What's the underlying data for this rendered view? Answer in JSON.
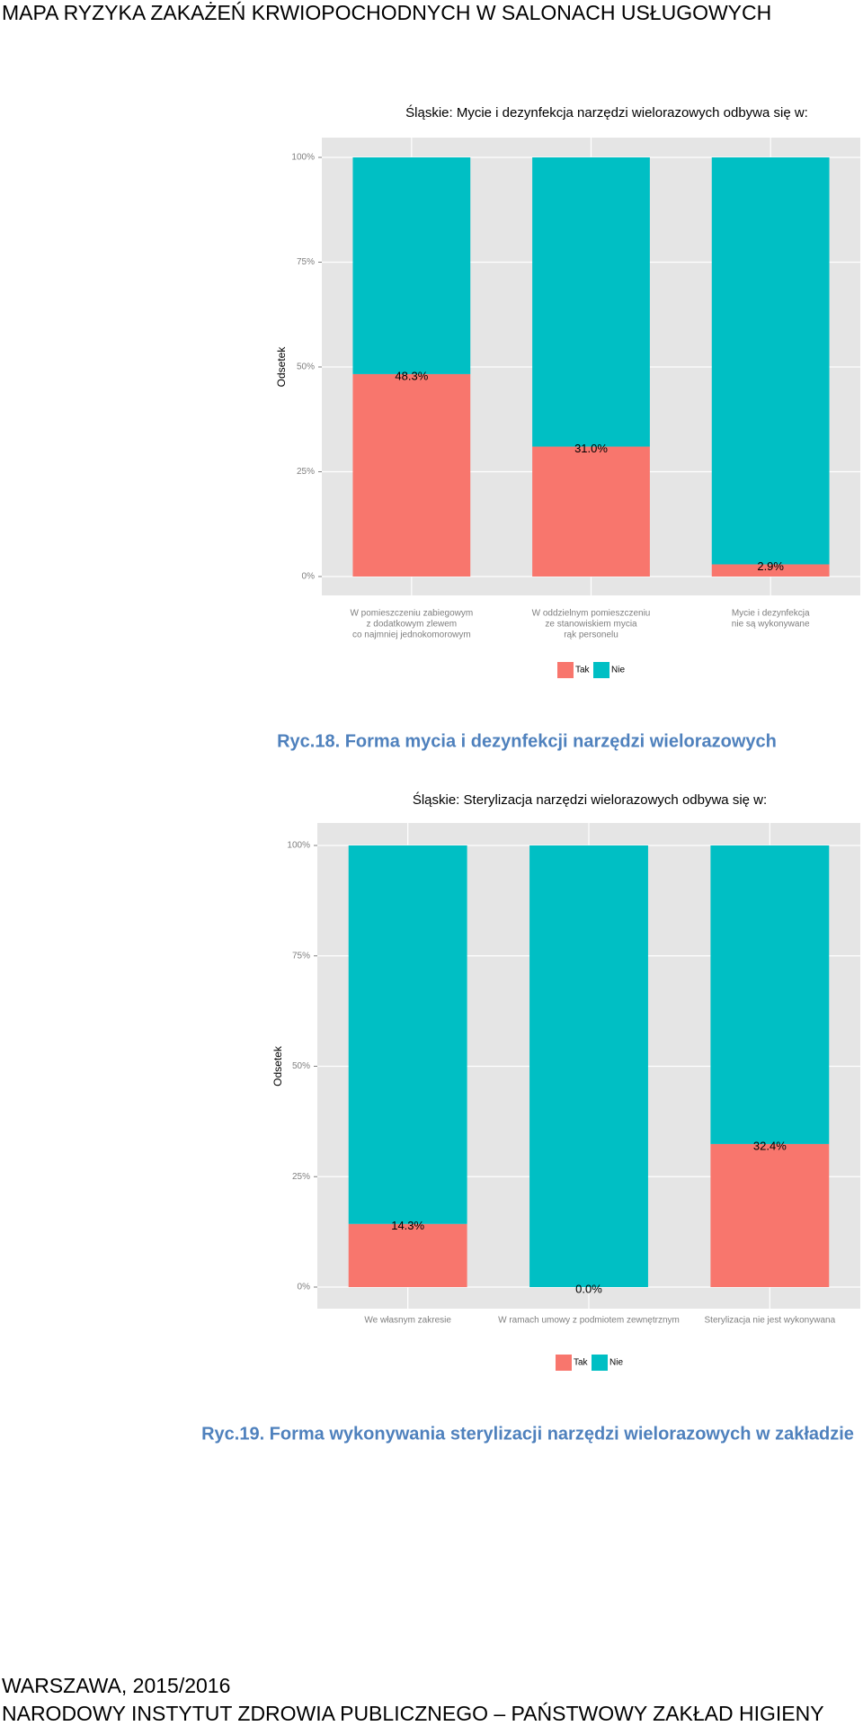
{
  "header": {
    "title": "MAPA RYZYKA ZAKAŻEŃ KRWIOPOCHODNYCH W SALONACH USŁUGOWYCH"
  },
  "chart_data": [
    {
      "type": "bar",
      "stacked": true,
      "title": "Śląskie: Mycie i dezynfekcja narzędzi wielorazowych odbywa się w:",
      "ylabel": "Odsetek",
      "categories": [
        [
          "W pomieszczeniu zabiegowym",
          "z dodatkowym zlewem",
          "co najmniej jednokomorowym"
        ],
        [
          "W oddzielnym pomieszczeniu",
          "ze stanowiskiem mycia",
          "rąk personelu"
        ],
        [
          "Mycie i dezynfekcja",
          "nie są wykonywane"
        ]
      ],
      "series": [
        {
          "name": "Tak",
          "color": "#f8766d",
          "values": [
            48.3,
            31.0,
            2.9
          ],
          "value_labels": [
            "48.3%",
            "31.0%",
            "2.9%"
          ]
        },
        {
          "name": "Nie",
          "color": "#00bfc4",
          "values": [
            51.7,
            69.0,
            97.1
          ]
        }
      ],
      "ylim": [
        0,
        100
      ],
      "yticks": [
        {
          "value": 0,
          "label": "0%"
        },
        {
          "value": 25,
          "label": "25%"
        },
        {
          "value": 50,
          "label": "50%"
        },
        {
          "value": 75,
          "label": "75%"
        },
        {
          "value": 100,
          "label": "100%"
        }
      ],
      "grid": true,
      "legend": "bottom",
      "caption": "Ryc.18. Forma mycia i dezynfekcji narzędzi wielorazowych"
    },
    {
      "type": "bar",
      "stacked": true,
      "title": "Śląskie: Sterylizacja narzędzi wielorazowych odbywa się w:",
      "ylabel": "Odsetek",
      "categories": [
        [
          "We własnym zakresie"
        ],
        [
          "W ramach umowy z podmiotem zewnętrznym"
        ],
        [
          "Sterylizacja nie jest wykonywana"
        ]
      ],
      "series": [
        {
          "name": "Tak",
          "color": "#f8766d",
          "values": [
            14.3,
            0.0,
            32.4
          ],
          "value_labels": [
            "14.3%",
            "0.0%",
            "32.4%"
          ]
        },
        {
          "name": "Nie",
          "color": "#00bfc4",
          "values": [
            85.7,
            100.0,
            67.6
          ]
        }
      ],
      "ylim": [
        0,
        100
      ],
      "yticks": [
        {
          "value": 0,
          "label": "0%"
        },
        {
          "value": 25,
          "label": "25%"
        },
        {
          "value": 50,
          "label": "50%"
        },
        {
          "value": 75,
          "label": "75%"
        },
        {
          "value": 100,
          "label": "100%"
        }
      ],
      "grid": true,
      "legend": "bottom",
      "caption": "Ryc.19. Forma wykonywania sterylizacji narzędzi wielorazowych w zakładzie"
    }
  ],
  "footer": {
    "lines": [
      "WARSZAWA, 2015/2016",
      "NARODOWY INSTYTUT ZDROWIA PUBLICZNEGO – PAŃSTWOWY ZAKŁAD HIGIENY"
    ]
  }
}
